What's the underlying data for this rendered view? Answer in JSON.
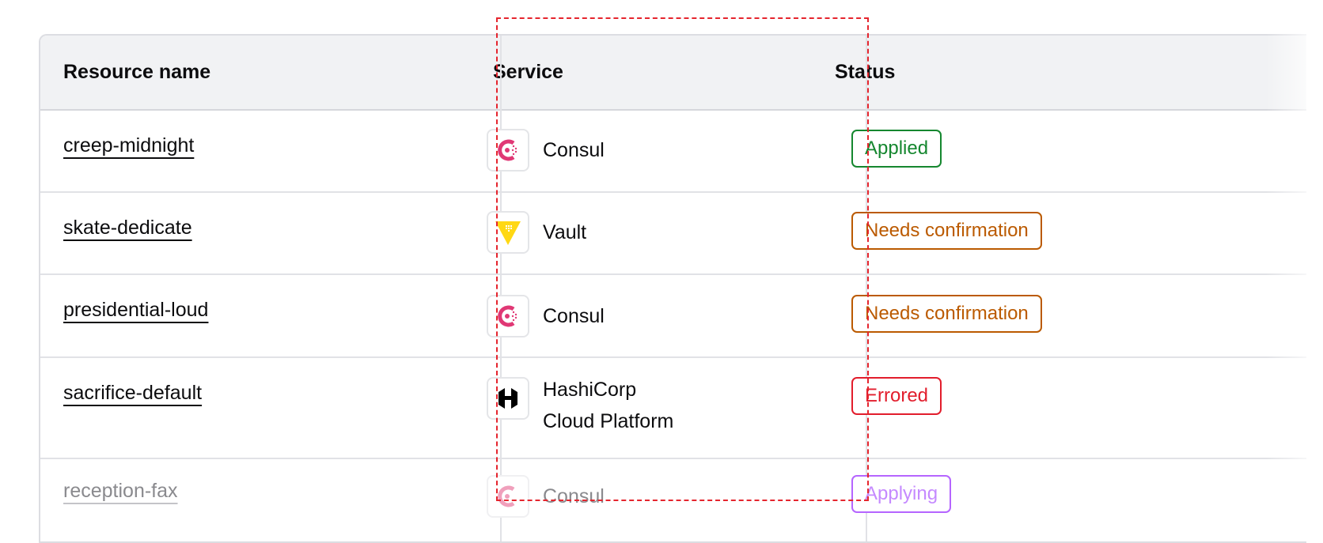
{
  "columns": [
    "Resource name",
    "Service",
    "Status"
  ],
  "rows": [
    {
      "name": "creep-midnight",
      "service": "Consul",
      "service_icon": "consul-icon",
      "status": "Applied",
      "status_color": "#15872f"
    },
    {
      "name": "skate-dedicate",
      "service": "Vault",
      "service_icon": "vault-icon",
      "status": "Needs confirmation",
      "status_color": "#bb5a00"
    },
    {
      "name": "presidential-loud",
      "service": "Consul",
      "service_icon": "consul-icon",
      "status": "Needs confirmation",
      "status_color": "#bb5a00"
    },
    {
      "name": "sacrifice-default",
      "service_line1": "HashiCorp",
      "service_line2": "Cloud Platform",
      "service_icon": "hcp-icon",
      "status": "Errored",
      "status_color": "#e21d2c"
    },
    {
      "name": "reception-fax",
      "service": "Consul",
      "service_icon": "consul-icon",
      "status": "Applying",
      "status_color": "#a737ff"
    }
  ],
  "colors": {
    "consul": "#e03875",
    "vault": "#ffd814",
    "highlight": "#e5252e"
  }
}
